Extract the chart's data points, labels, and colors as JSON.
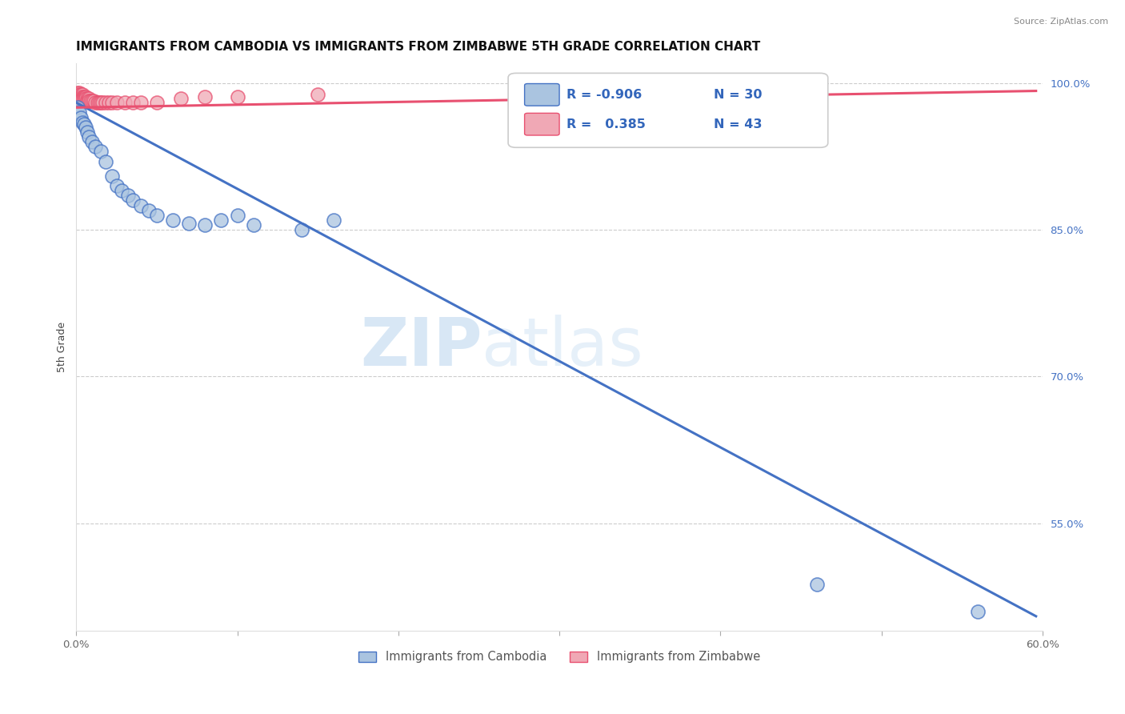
{
  "title": "IMMIGRANTS FROM CAMBODIA VS IMMIGRANTS FROM ZIMBABWE 5TH GRADE CORRELATION CHART",
  "source": "Source: ZipAtlas.com",
  "ylabel": "5th Grade",
  "watermark": "ZIPatlas",
  "xlim": [
    0.0,
    0.6
  ],
  "ylim": [
    0.44,
    1.02
  ],
  "xticks": [
    0.0,
    0.1,
    0.2,
    0.3,
    0.4,
    0.5,
    0.6
  ],
  "xtick_labels": [
    "0.0%",
    "",
    "",
    "",
    "",
    "",
    "60.0%"
  ],
  "yticks": [
    0.55,
    0.7,
    0.85,
    1.0
  ],
  "ytick_labels": [
    "55.0%",
    "70.0%",
    "85.0%",
    "100.0%"
  ],
  "legend_entries": [
    {
      "label": "Immigrants from Cambodia",
      "color": "#aac4e0",
      "R": "-0.906",
      "N": "30"
    },
    {
      "label": "Immigrants from Zimbabwe",
      "color": "#f0a8b5",
      "R": " 0.385",
      "N": "43"
    }
  ],
  "blue_scatter_x": [
    0.001,
    0.002,
    0.003,
    0.004,
    0.005,
    0.006,
    0.007,
    0.008,
    0.01,
    0.012,
    0.015,
    0.018,
    0.022,
    0.025,
    0.028,
    0.032,
    0.035,
    0.04,
    0.045,
    0.05,
    0.06,
    0.07,
    0.08,
    0.09,
    0.1,
    0.11,
    0.14,
    0.16,
    0.46,
    0.56
  ],
  "blue_scatter_y": [
    0.975,
    0.97,
    0.965,
    0.96,
    0.958,
    0.955,
    0.95,
    0.945,
    0.94,
    0.935,
    0.93,
    0.92,
    0.905,
    0.895,
    0.89,
    0.885,
    0.88,
    0.875,
    0.87,
    0.865,
    0.86,
    0.857,
    0.855,
    0.86,
    0.865,
    0.855,
    0.85,
    0.86,
    0.488,
    0.46
  ],
  "pink_scatter_x": [
    0.001,
    0.001,
    0.001,
    0.001,
    0.002,
    0.002,
    0.002,
    0.002,
    0.003,
    0.003,
    0.003,
    0.004,
    0.004,
    0.004,
    0.005,
    0.005,
    0.006,
    0.006,
    0.007,
    0.007,
    0.008,
    0.008,
    0.009,
    0.01,
    0.011,
    0.012,
    0.013,
    0.014,
    0.015,
    0.016,
    0.018,
    0.02,
    0.022,
    0.025,
    0.03,
    0.035,
    0.04,
    0.05,
    0.065,
    0.08,
    0.1,
    0.15,
    0.3
  ],
  "pink_scatter_y": [
    0.99,
    0.988,
    0.986,
    0.984,
    0.99,
    0.988,
    0.986,
    0.984,
    0.988,
    0.986,
    0.984,
    0.988,
    0.986,
    0.984,
    0.986,
    0.984,
    0.986,
    0.984,
    0.984,
    0.982,
    0.984,
    0.982,
    0.982,
    0.982,
    0.982,
    0.98,
    0.98,
    0.98,
    0.98,
    0.98,
    0.98,
    0.98,
    0.98,
    0.98,
    0.98,
    0.98,
    0.98,
    0.98,
    0.984,
    0.986,
    0.986,
    0.988,
    0.995
  ],
  "blue_line_x": [
    0.0,
    0.596
  ],
  "blue_line_y": [
    0.98,
    0.455
  ],
  "pink_line_x": [
    0.0,
    0.596
  ],
  "pink_line_y": [
    0.975,
    0.992
  ],
  "blue_line_color": "#4472c4",
  "pink_line_color": "#e85070",
  "blue_dot_face": "#aac4e0",
  "blue_dot_edge": "#4472c4",
  "pink_dot_face": "#f0a8b5",
  "pink_dot_edge": "#e85070",
  "title_fontsize": 11,
  "tick_fontsize": 9.5,
  "ylabel_fontsize": 9
}
